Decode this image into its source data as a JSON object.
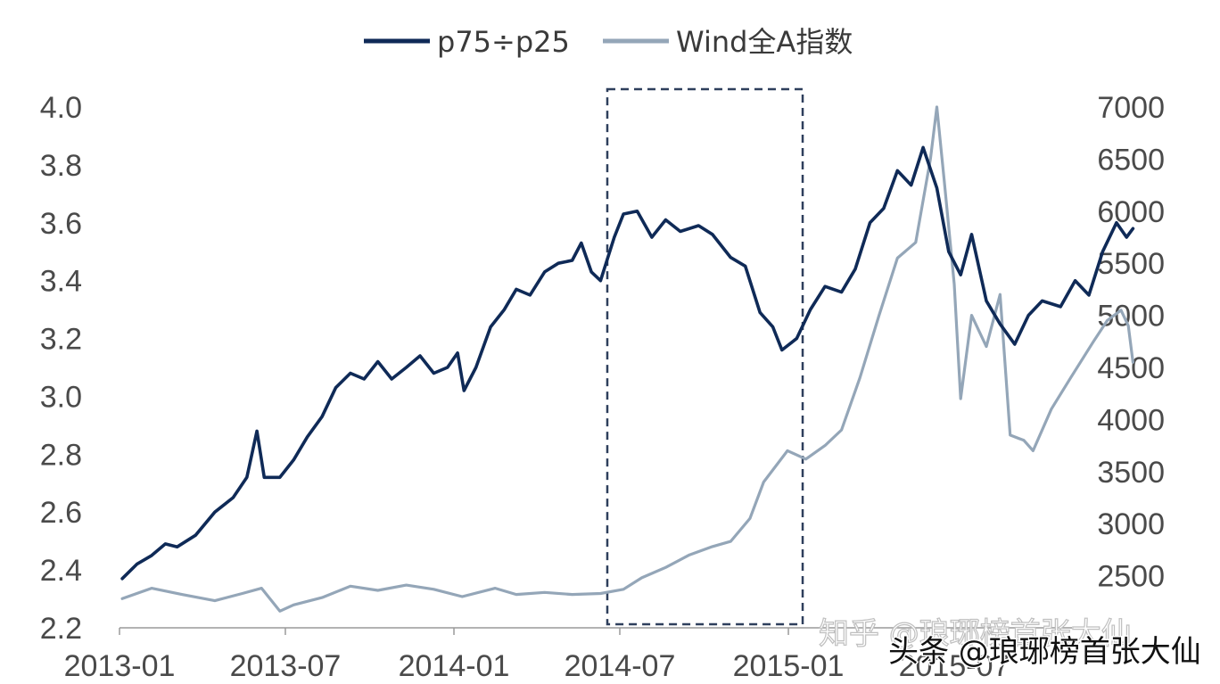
{
  "chart_data": {
    "type": "line",
    "legend_position": "top-center",
    "x_ticks": [
      "2013-01",
      "2013-07",
      "2014-01",
      "2014-07",
      "2015-01",
      "2015-07"
    ],
    "y_left": {
      "min": 2.2,
      "max": 4.0,
      "ticks": [
        "2.2",
        "2.4",
        "2.6",
        "2.8",
        "3.0",
        "3.2",
        "3.4",
        "3.6",
        "3.8",
        "4.0"
      ]
    },
    "y_right": {
      "min": 2000,
      "max": 7000,
      "ticks": [
        "2500",
        "3000",
        "3500",
        "4000",
        "4500",
        "5000",
        "5500",
        "6000",
        "6500",
        "7000"
      ]
    },
    "highlight_box": {
      "x_start": "2014-07",
      "x_end": "2015-01",
      "style": "dashed"
    },
    "series": [
      {
        "name": "p75÷p25",
        "axis": "left",
        "color": "#0f2a57",
        "points": [
          [
            "2013-01-04",
            2.37
          ],
          [
            "2013-01-20",
            2.42
          ],
          [
            "2013-02-05",
            2.45
          ],
          [
            "2013-02-20",
            2.49
          ],
          [
            "2013-03-05",
            2.48
          ],
          [
            "2013-03-25",
            2.52
          ],
          [
            "2013-04-15",
            2.6
          ],
          [
            "2013-05-05",
            2.65
          ],
          [
            "2013-05-20",
            2.72
          ],
          [
            "2013-05-31",
            2.88
          ],
          [
            "2013-06-08",
            2.72
          ],
          [
            "2013-06-25",
            2.72
          ],
          [
            "2013-07-10",
            2.78
          ],
          [
            "2013-07-25",
            2.86
          ],
          [
            "2013-08-10",
            2.93
          ],
          [
            "2013-08-25",
            3.03
          ],
          [
            "2013-09-10",
            3.08
          ],
          [
            "2013-09-25",
            3.06
          ],
          [
            "2013-10-10",
            3.12
          ],
          [
            "2013-10-25",
            3.06
          ],
          [
            "2013-11-10",
            3.1
          ],
          [
            "2013-11-25",
            3.14
          ],
          [
            "2013-12-10",
            3.08
          ],
          [
            "2013-12-25",
            3.1
          ],
          [
            "2014-01-05",
            3.15
          ],
          [
            "2014-01-12",
            3.02
          ],
          [
            "2014-01-25",
            3.1
          ],
          [
            "2014-02-10",
            3.24
          ],
          [
            "2014-02-25",
            3.3
          ],
          [
            "2014-03-10",
            3.37
          ],
          [
            "2014-03-25",
            3.35
          ],
          [
            "2014-04-10",
            3.43
          ],
          [
            "2014-04-25",
            3.46
          ],
          [
            "2014-05-10",
            3.47
          ],
          [
            "2014-05-20",
            3.53
          ],
          [
            "2014-05-31",
            3.43
          ],
          [
            "2014-06-10",
            3.4
          ],
          [
            "2014-06-25",
            3.55
          ],
          [
            "2014-07-05",
            3.63
          ],
          [
            "2014-07-20",
            3.64
          ],
          [
            "2014-08-05",
            3.55
          ],
          [
            "2014-08-20",
            3.61
          ],
          [
            "2014-09-05",
            3.57
          ],
          [
            "2014-09-25",
            3.59
          ],
          [
            "2014-10-10",
            3.56
          ],
          [
            "2014-10-30",
            3.48
          ],
          [
            "2014-11-15",
            3.45
          ],
          [
            "2014-12-01",
            3.29
          ],
          [
            "2014-12-15",
            3.24
          ],
          [
            "2014-12-25",
            3.16
          ],
          [
            "2015-01-10",
            3.2
          ],
          [
            "2015-01-25",
            3.3
          ],
          [
            "2015-02-10",
            3.38
          ],
          [
            "2015-02-28",
            3.36
          ],
          [
            "2015-03-15",
            3.44
          ],
          [
            "2015-03-31",
            3.6
          ],
          [
            "2015-04-15",
            3.65
          ],
          [
            "2015-04-30",
            3.78
          ],
          [
            "2015-05-15",
            3.73
          ],
          [
            "2015-05-28",
            3.86
          ],
          [
            "2015-06-12",
            3.72
          ],
          [
            "2015-06-25",
            3.5
          ],
          [
            "2015-07-08",
            3.42
          ],
          [
            "2015-07-20",
            3.56
          ],
          [
            "2015-08-05",
            3.33
          ],
          [
            "2015-08-20",
            3.25
          ],
          [
            "2015-09-05",
            3.18
          ],
          [
            "2015-09-20",
            3.28
          ],
          [
            "2015-10-05",
            3.33
          ],
          [
            "2015-10-25",
            3.31
          ],
          [
            "2015-11-10",
            3.4
          ],
          [
            "2015-11-25",
            3.35
          ],
          [
            "2015-12-10",
            3.5
          ],
          [
            "2015-12-25",
            3.6
          ],
          [
            "2016-01-05",
            3.55
          ],
          [
            "2016-01-12",
            3.58
          ]
        ]
      },
      {
        "name": "Wind全A指数",
        "axis": "right",
        "color": "#94a6b8",
        "points": [
          [
            "2013-01-04",
            2280
          ],
          [
            "2013-02-05",
            2380
          ],
          [
            "2013-03-10",
            2320
          ],
          [
            "2013-04-15",
            2260
          ],
          [
            "2013-05-15",
            2330
          ],
          [
            "2013-06-05",
            2380
          ],
          [
            "2013-06-25",
            2160
          ],
          [
            "2013-07-10",
            2220
          ],
          [
            "2013-08-10",
            2290
          ],
          [
            "2013-09-10",
            2400
          ],
          [
            "2013-10-10",
            2360
          ],
          [
            "2013-11-10",
            2410
          ],
          [
            "2013-12-10",
            2370
          ],
          [
            "2014-01-10",
            2300
          ],
          [
            "2014-02-15",
            2380
          ],
          [
            "2014-03-10",
            2320
          ],
          [
            "2014-04-10",
            2340
          ],
          [
            "2014-05-10",
            2320
          ],
          [
            "2014-06-10",
            2330
          ],
          [
            "2014-07-05",
            2370
          ],
          [
            "2014-07-25",
            2480
          ],
          [
            "2014-08-20",
            2580
          ],
          [
            "2014-09-15",
            2700
          ],
          [
            "2014-10-10",
            2780
          ],
          [
            "2014-10-30",
            2830
          ],
          [
            "2014-11-20",
            3050
          ],
          [
            "2014-12-05",
            3400
          ],
          [
            "2014-12-31",
            3700
          ],
          [
            "2015-01-20",
            3620
          ],
          [
            "2015-02-10",
            3750
          ],
          [
            "2015-02-28",
            3900
          ],
          [
            "2015-03-20",
            4400
          ],
          [
            "2015-04-10",
            5000
          ],
          [
            "2015-04-30",
            5550
          ],
          [
            "2015-05-20",
            5700
          ],
          [
            "2015-06-05",
            6500
          ],
          [
            "2015-06-12",
            7000
          ],
          [
            "2015-06-20",
            6300
          ],
          [
            "2015-07-01",
            5300
          ],
          [
            "2015-07-08",
            4200
          ],
          [
            "2015-07-20",
            5000
          ],
          [
            "2015-08-05",
            4700
          ],
          [
            "2015-08-20",
            5200
          ],
          [
            "2015-08-31",
            3850
          ],
          [
            "2015-09-15",
            3800
          ],
          [
            "2015-09-25",
            3700
          ],
          [
            "2015-10-15",
            4100
          ],
          [
            "2015-11-05",
            4400
          ],
          [
            "2015-11-30",
            4750
          ],
          [
            "2015-12-15",
            4950
          ],
          [
            "2015-12-30",
            5050
          ],
          [
            "2016-01-07",
            4900
          ],
          [
            "2016-01-12",
            4550
          ]
        ]
      }
    ]
  },
  "watermark": {
    "line1": "知乎 @琅琊榜首张大仙",
    "line2": "头条 @琅琊榜首张大仙"
  }
}
